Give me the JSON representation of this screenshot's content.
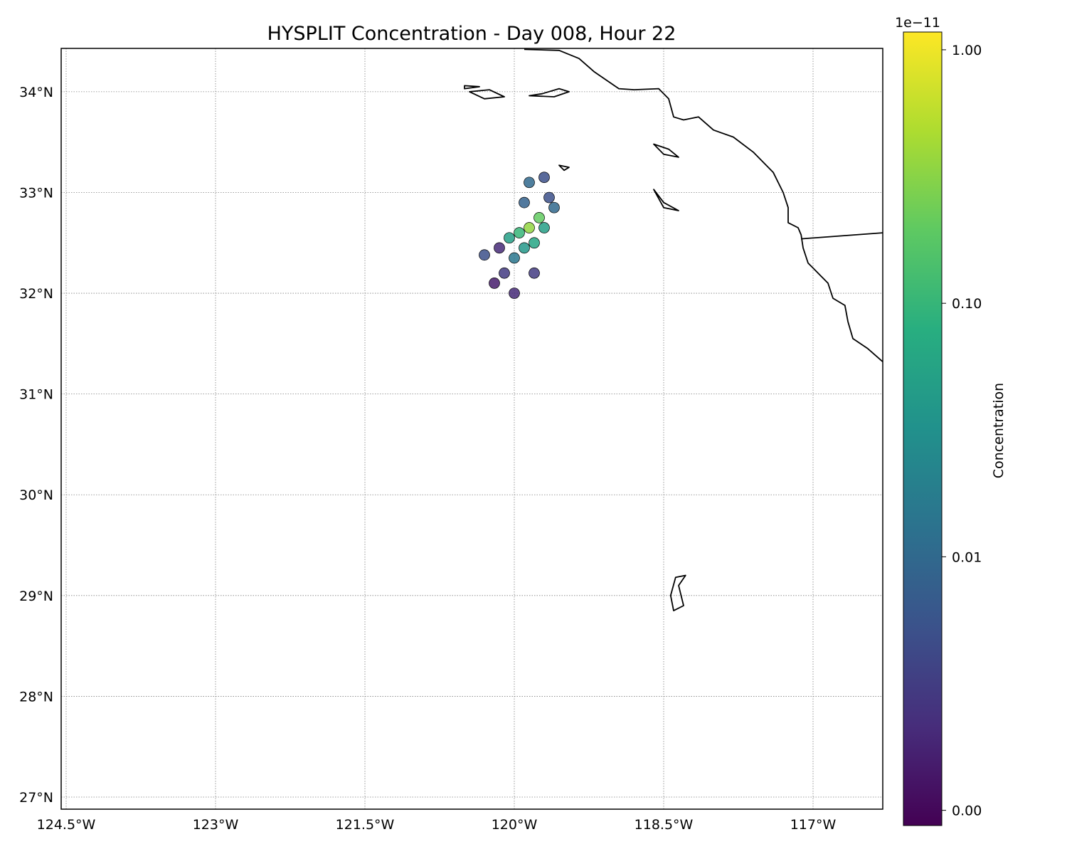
{
  "chart_data": {
    "type": "scatter",
    "title": "HYSPLIT Concentration - Day 008, Hour 22",
    "map": {
      "projection": "PlateCarree",
      "lon_range": [
        -124.55,
        -116.3
      ],
      "lat_range": [
        26.88,
        34.43
      ],
      "grid": true,
      "x_ticks": [
        {
          "value": -124.5,
          "label": "124.5°W"
        },
        {
          "value": -123.0,
          "label": "123°W"
        },
        {
          "value": -121.5,
          "label": "121.5°W"
        },
        {
          "value": -120.0,
          "label": "120°W"
        },
        {
          "value": -118.5,
          "label": "118.5°W"
        },
        {
          "value": -117.0,
          "label": "117°W"
        }
      ],
      "y_ticks": [
        {
          "value": 27,
          "label": "27°N"
        },
        {
          "value": 28,
          "label": "28°N"
        },
        {
          "value": 29,
          "label": "29°N"
        },
        {
          "value": 30,
          "label": "30°N"
        },
        {
          "value": 31,
          "label": "31°N"
        },
        {
          "value": 32,
          "label": "32°N"
        },
        {
          "value": 33,
          "label": "33°N"
        },
        {
          "value": 34,
          "label": "34°N"
        }
      ],
      "coastline": [
        [
          -119.9,
          34.42
        ],
        [
          -119.55,
          34.41
        ],
        [
          -119.35,
          34.33
        ],
        [
          -119.2,
          34.2
        ],
        [
          -118.95,
          34.03
        ],
        [
          -118.8,
          34.02
        ],
        [
          -118.55,
          34.03
        ],
        [
          -118.45,
          33.93
        ],
        [
          -118.4,
          33.75
        ],
        [
          -118.3,
          33.72
        ],
        [
          -118.15,
          33.75
        ],
        [
          -118.0,
          33.62
        ],
        [
          -117.8,
          33.55
        ],
        [
          -117.6,
          33.4
        ],
        [
          -117.4,
          33.2
        ],
        [
          -117.3,
          33.0
        ],
        [
          -117.25,
          32.85
        ],
        [
          -117.25,
          32.7
        ],
        [
          -117.15,
          32.65
        ],
        [
          -117.12,
          32.58
        ],
        [
          -117.1,
          32.45
        ],
        [
          -117.05,
          32.3
        ],
        [
          -116.95,
          32.2
        ],
        [
          -116.85,
          32.1
        ],
        [
          -116.8,
          31.95
        ],
        [
          -116.68,
          31.88
        ],
        [
          -116.65,
          31.72
        ],
        [
          -116.6,
          31.55
        ],
        [
          -116.45,
          31.45
        ],
        [
          -116.3,
          31.32
        ]
      ],
      "islands": [
        [
          [
            -119.85,
            33.96
          ],
          [
            -119.72,
            33.98
          ],
          [
            -119.55,
            34.03
          ],
          [
            -119.45,
            34.0
          ],
          [
            -119.6,
            33.95
          ],
          [
            -119.85,
            33.96
          ]
        ],
        [
          [
            -120.45,
            34.0
          ],
          [
            -120.25,
            34.02
          ],
          [
            -120.1,
            33.95
          ],
          [
            -120.3,
            33.93
          ],
          [
            -120.45,
            34.0
          ]
        ],
        [
          [
            -120.5,
            34.06
          ],
          [
            -120.35,
            34.05
          ],
          [
            -120.5,
            34.03
          ],
          [
            -120.5,
            34.06
          ]
        ],
        [
          [
            -118.6,
            33.48
          ],
          [
            -118.45,
            33.43
          ],
          [
            -118.35,
            33.35
          ],
          [
            -118.5,
            33.38
          ],
          [
            -118.6,
            33.48
          ]
        ],
        [
          [
            -118.6,
            33.03
          ],
          [
            -118.5,
            32.9
          ],
          [
            -118.35,
            32.82
          ],
          [
            -118.5,
            32.85
          ],
          [
            -118.6,
            33.03
          ]
        ],
        [
          [
            -119.55,
            33.27
          ],
          [
            -119.45,
            33.25
          ],
          [
            -119.5,
            33.22
          ],
          [
            -119.55,
            33.27
          ]
        ],
        [
          [
            -118.28,
            29.2
          ],
          [
            -118.35,
            29.1
          ],
          [
            -118.3,
            28.9
          ],
          [
            -118.4,
            28.85
          ],
          [
            -118.43,
            29.0
          ],
          [
            -118.38,
            29.18
          ],
          [
            -118.28,
            29.2
          ]
        ]
      ],
      "border": [
        [
          -117.12,
          32.54
        ],
        [
          -116.3,
          32.6
        ]
      ]
    },
    "x": [
      -120.05,
      -119.95,
      -119.85,
      -119.75,
      -119.9,
      -119.8,
      -119.7,
      -120.0,
      -119.6,
      -119.65,
      -119.9,
      -119.85,
      -120.1,
      -120.3,
      -120.2,
      -120.15,
      -120.0,
      -119.7,
      -119.8
    ],
    "y": [
      32.55,
      32.6,
      32.65,
      32.75,
      32.45,
      32.5,
      32.65,
      32.35,
      32.85,
      32.95,
      32.9,
      33.1,
      32.2,
      32.38,
      32.1,
      32.45,
      32.0,
      33.15,
      32.2
    ],
    "values": [
      0.05,
      0.1,
      0.35,
      0.2,
      0.04,
      0.06,
      0.05,
      0.015,
      0.01,
      0.005,
      0.008,
      0.01,
      0.003,
      0.005,
      0.0015,
      0.002,
      0.002,
      0.005,
      0.003
    ],
    "colorbar": {
      "label": "Concentration",
      "scale": "log",
      "offset_label": "1e−11",
      "ticks": [
        {
          "value": 0.001,
          "label": "0.00"
        },
        {
          "value": 0.01,
          "label": "0.01"
        },
        {
          "value": 0.1,
          "label": "0.10"
        },
        {
          "value": 1.0,
          "label": "1.00"
        }
      ],
      "colormap": "viridis"
    }
  },
  "colors": {
    "background": "#ffffff",
    "land_outline": "#000000",
    "grid": "#808080"
  }
}
